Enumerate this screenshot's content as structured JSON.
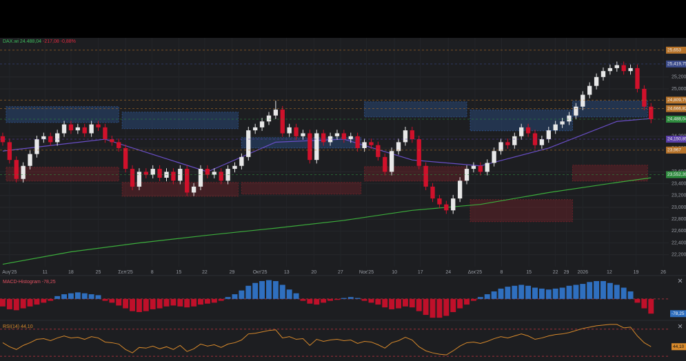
{
  "chart_data": {
    "type": "candlestick",
    "header": {
      "symbol": "DAX.wi",
      "last": "24.488,04",
      "change": "-217,08 -0,88%"
    },
    "xlim": [
      -0.4,
      97.6
    ],
    "ylim": [
      22000,
      25860
    ],
    "xticks": [
      {
        "value": 1,
        "label": "Αυγ'25"
      },
      {
        "value": 6.2,
        "label": "11"
      },
      {
        "value": 10,
        "label": "18"
      },
      {
        "value": 14,
        "label": "25"
      },
      {
        "value": 18,
        "label": "Σεπ'25"
      },
      {
        "value": 21.9,
        "label": "8"
      },
      {
        "value": 25.8,
        "label": "15"
      },
      {
        "value": 29.6,
        "label": "22"
      },
      {
        "value": 33.6,
        "label": "29"
      },
      {
        "value": 37.7,
        "label": "Οκτ'25"
      },
      {
        "value": 41.6,
        "label": "13"
      },
      {
        "value": 45.6,
        "label": "20"
      },
      {
        "value": 49.5,
        "label": "27"
      },
      {
        "value": 53.3,
        "label": "Νοε'25"
      },
      {
        "value": 57.4,
        "label": "10"
      },
      {
        "value": 61.2,
        "label": "17"
      },
      {
        "value": 65.3,
        "label": "24"
      },
      {
        "value": 69.2,
        "label": "Δεκ'25"
      },
      {
        "value": 73.1,
        "label": "8"
      },
      {
        "value": 77.1,
        "label": "15"
      },
      {
        "value": 81,
        "label": "22"
      },
      {
        "value": 82.6,
        "label": "29"
      },
      {
        "value": 85,
        "label": "2026"
      },
      {
        "value": 88.9,
        "label": "12"
      },
      {
        "value": 92.8,
        "label": "19"
      },
      {
        "value": 96.8,
        "label": "26"
      }
    ],
    "yticks": [
      {
        "value": 22200,
        "label": "22,200"
      },
      {
        "value": 22400,
        "label": "22,400"
      },
      {
        "value": 22600,
        "label": "22,600"
      },
      {
        "value": 22800,
        "label": "22,800"
      },
      {
        "value": 23000,
        "label": "23,000"
      },
      {
        "value": 23200,
        "label": "23,200"
      },
      {
        "value": 23400,
        "label": "23,400"
      },
      {
        "value": 23600,
        "label": "23,600"
      },
      {
        "value": 24000,
        "label": "24,000"
      },
      {
        "value": 24200,
        "label": "24,200"
      },
      {
        "value": 25000,
        "label": "25,000"
      },
      {
        "value": 25200,
        "label": "25,200"
      }
    ],
    "up_color": "#e8e8e8",
    "down_color": "#d0112b",
    "open": [
      24200,
      24100,
      23800,
      23480,
      23700,
      23900,
      24150,
      24200,
      24100,
      24250,
      24400,
      24300,
      24350,
      24250,
      24400,
      24350,
      24150,
      24100,
      24000,
      23650,
      23350,
      23600,
      23550,
      23650,
      23500,
      23600,
      23450,
      23650,
      23250,
      23350,
      23650,
      23550,
      23600,
      23450,
      23650,
      23700,
      23850,
      24300,
      24350,
      24450,
      24550,
      24650,
      24250,
      24350,
      24200,
      24250,
      23800,
      24250,
      24100,
      24200,
      24250,
      24150,
      24200,
      24000,
      24100,
      24050,
      23850,
      23600,
      23950,
      24100,
      24300,
      24150,
      23700,
      23350,
      23150,
      23050,
      22950,
      23150,
      23450,
      23650,
      23700,
      23600,
      23750,
      23950,
      24100,
      24050,
      24200,
      24350,
      24250,
      24050,
      24150,
      24300,
      24400,
      24450,
      24550,
      24700,
      24900,
      25050,
      25200,
      25300,
      25350,
      25400,
      25300,
      25350,
      25000,
      24700
    ],
    "high": [
      24260,
      24160,
      23860,
      23760,
      23960,
      24210,
      24260,
      24260,
      24310,
      24460,
      24460,
      24410,
      24410,
      24460,
      24460,
      24410,
      24210,
      24160,
      24060,
      23710,
      23660,
      23660,
      23710,
      23710,
      23660,
      23660,
      23710,
      23710,
      23410,
      23710,
      23710,
      23660,
      23660,
      23710,
      23760,
      23910,
      24360,
      24410,
      24510,
      24610,
      24800,
      24710,
      24410,
      24410,
      24310,
      24310,
      24310,
      24310,
      24260,
      24310,
      24310,
      24260,
      24260,
      24160,
      24160,
      24110,
      23910,
      24010,
      24160,
      24360,
      24360,
      24210,
      23760,
      23410,
      23210,
      23110,
      23210,
      23510,
      23710,
      23760,
      23760,
      23810,
      24010,
      24160,
      24160,
      24260,
      24410,
      24410,
      24310,
      24210,
      24360,
      24460,
      24510,
      24610,
      24760,
      24960,
      25110,
      25260,
      25360,
      25410,
      25460,
      25460,
      25410,
      25410,
      25060,
      24760
    ],
    "low": [
      24040,
      23740,
      23420,
      23420,
      23640,
      23840,
      24090,
      24040,
      24040,
      24190,
      24240,
      24240,
      24190,
      24190,
      24290,
      24090,
      24040,
      23940,
      23590,
      23290,
      23290,
      23490,
      23490,
      23440,
      23440,
      23390,
      23390,
      23190,
      23190,
      23290,
      23490,
      23490,
      23390,
      23390,
      23590,
      23640,
      23790,
      24240,
      24290,
      24390,
      24490,
      24190,
      24190,
      24140,
      24140,
      23740,
      23740,
      24040,
      24040,
      24140,
      24090,
      24090,
      23940,
      23940,
      23990,
      23790,
      23540,
      23540,
      23890,
      24040,
      24090,
      23640,
      23290,
      23090,
      22990,
      22890,
      22890,
      23090,
      23390,
      23590,
      23540,
      23540,
      23690,
      23890,
      23990,
      23990,
      24140,
      24190,
      23990,
      23990,
      24090,
      24240,
      24340,
      24390,
      24490,
      24640,
      24840,
      24990,
      25140,
      25240,
      25290,
      25240,
      25240,
      24940,
      24640,
      24420
    ],
    "close": [
      24100,
      23800,
      23480,
      23700,
      23900,
      24150,
      24200,
      24100,
      24250,
      24400,
      24300,
      24350,
      24250,
      24400,
      24350,
      24150,
      24100,
      24000,
      23650,
      23350,
      23600,
      23550,
      23650,
      23500,
      23600,
      23450,
      23650,
      23250,
      23350,
      23650,
      23550,
      23600,
      23450,
      23650,
      23700,
      23850,
      24300,
      24350,
      24450,
      24550,
      24650,
      24250,
      24350,
      24200,
      24250,
      23800,
      24250,
      24100,
      24200,
      24250,
      24150,
      24200,
      24000,
      24100,
      24050,
      23850,
      23600,
      23950,
      24100,
      24300,
      24150,
      23700,
      23350,
      23150,
      23050,
      22950,
      23150,
      23450,
      23650,
      23700,
      23600,
      23750,
      23950,
      24100,
      24050,
      24200,
      24350,
      24250,
      24050,
      24150,
      24300,
      24400,
      24450,
      24550,
      24700,
      24900,
      25050,
      25200,
      25300,
      25350,
      25400,
      25300,
      25350,
      25000,
      24700,
      24488
    ],
    "zones": [
      {
        "color": "#2c4f86",
        "from": 0.5,
        "to": 17,
        "low": 24433,
        "high": 24700
      },
      {
        "color": "#2c4f86",
        "from": 17.5,
        "to": 34.5,
        "low": 24328,
        "high": 24607
      },
      {
        "color": "#2c4f86",
        "from": 35,
        "to": 52.5,
        "low": 24002,
        "high": 24177
      },
      {
        "color": "#2c4f86",
        "from": 53,
        "to": 68,
        "low": 24526,
        "high": 24781
      },
      {
        "color": "#2c4f86",
        "from": 68.5,
        "to": 83.5,
        "low": 24293,
        "high": 24642
      },
      {
        "color": "#2c4f86",
        "from": 83.5,
        "to": 94.5,
        "low": 24526,
        "high": 24793
      },
      {
        "color": "#6e2228",
        "from": 0.5,
        "to": 17,
        "low": 23444,
        "high": 23677
      },
      {
        "color": "#6e2228",
        "from": 17.5,
        "to": 34.5,
        "low": 23188,
        "high": 23421
      },
      {
        "color": "#6e2228",
        "from": 35,
        "to": 52.5,
        "low": 23223,
        "high": 23421
      },
      {
        "color": "#6e2228",
        "from": 53,
        "to": 68,
        "low": 23444,
        "high": 23688
      },
      {
        "color": "#6e2228",
        "from": 68.5,
        "to": 83.5,
        "low": 22758,
        "high": 23130
      },
      {
        "color": "#6e2228",
        "from": 83.5,
        "to": 94.5,
        "low": 23444,
        "high": 23712
      }
    ],
    "lines": [
      {
        "color": "#3cae3c",
        "x": [
          0,
          10,
          20,
          30,
          40,
          50,
          60,
          70,
          80,
          90,
          95
        ],
        "values": [
          22040,
          22250,
          22400,
          22530,
          22650,
          22780,
          22950,
          23050,
          23250,
          23420,
          23500
        ]
      },
      {
        "color": "#6a4fc8",
        "x": [
          0,
          15,
          30,
          40,
          50,
          60,
          70,
          80,
          90,
          95
        ],
        "values": [
          23950,
          24150,
          23600,
          24100,
          24150,
          23800,
          23700,
          24000,
          24450,
          24500
        ]
      }
    ],
    "price_labels": [
      {
        "value": 25653,
        "label": "25,653",
        "color": "#b8742a"
      },
      {
        "value": 25419.75,
        "label": "25,419,75",
        "color": "#3a4a8a"
      },
      {
        "value": 24809.75,
        "label": "24,809,75",
        "color": "#b8742a"
      },
      {
        "value": 24666.82,
        "label": "24,666,82",
        "color": "#b8742a"
      },
      {
        "value": 24488.04,
        "label": "24,488,04",
        "color": "#2e8b3e"
      },
      {
        "value": 24150.85,
        "label": "24,150,85",
        "color": "#5a3fa8"
      },
      {
        "value": 23967,
        "label": "23,967",
        "color": "#b8742a"
      },
      {
        "value": 23552.39,
        "label": "23,552,39",
        "color": "#2e8b3e"
      }
    ],
    "macd": {
      "label": "MACD-Histogram",
      "last_label": "-78,25",
      "ylim": [
        -103,
        117
      ],
      "up_color": "#2f6fbf",
      "down_color": "#c0102a",
      "values": [
        -40,
        -55,
        -60,
        -50,
        -40,
        -30,
        -20,
        -10,
        15,
        25,
        30,
        35,
        30,
        25,
        20,
        -10,
        -20,
        -35,
        -50,
        -65,
        -70,
        -65,
        -55,
        -50,
        -40,
        -35,
        -40,
        -45,
        -40,
        -30,
        -25,
        -20,
        -10,
        10,
        25,
        45,
        70,
        85,
        95,
        100,
        95,
        75,
        50,
        30,
        -10,
        -25,
        -30,
        -20,
        -10,
        -5,
        5,
        10,
        5,
        -10,
        -20,
        -30,
        -45,
        -55,
        -50,
        -40,
        -45,
        -65,
        -85,
        -100,
        -100,
        -90,
        -70,
        -50,
        -30,
        -10,
        10,
        25,
        40,
        55,
        65,
        70,
        75,
        70,
        60,
        55,
        50,
        55,
        60,
        70,
        75,
        80,
        90,
        95,
        95,
        85,
        75,
        60,
        40,
        -20,
        -50,
        -78.25
      ]
    },
    "rsi": {
      "label": "RSI(14)",
      "last_label": "44,10",
      "color": "#d98a2b",
      "ylim": [
        25,
        81
      ],
      "levels": [
        70,
        30
      ],
      "values": [
        50,
        44,
        40,
        46,
        50,
        55,
        56,
        53,
        57,
        60,
        57,
        58,
        55,
        59,
        57,
        51,
        50,
        48,
        40,
        35,
        43,
        42,
        45,
        41,
        44,
        40,
        46,
        37,
        41,
        48,
        45,
        47,
        43,
        48,
        50,
        54,
        63,
        64,
        66,
        68,
        69,
        57,
        59,
        55,
        56,
        46,
        55,
        52,
        54,
        55,
        53,
        54,
        49,
        52,
        51,
        47,
        42,
        50,
        53,
        58,
        54,
        44,
        38,
        35,
        33,
        32,
        38,
        45,
        50,
        51,
        49,
        52,
        56,
        59,
        57,
        60,
        63,
        60,
        55,
        57,
        60,
        62,
        63,
        65,
        68,
        71,
        73,
        75,
        76,
        77,
        77,
        72,
        73,
        60,
        50,
        44.1
      ]
    }
  }
}
